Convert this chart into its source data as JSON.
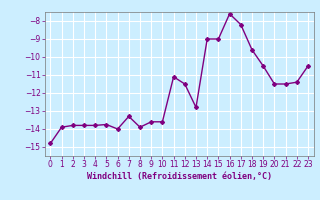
{
  "x": [
    0,
    1,
    2,
    3,
    4,
    5,
    6,
    7,
    8,
    9,
    10,
    11,
    12,
    13,
    14,
    15,
    16,
    17,
    18,
    19,
    20,
    21,
    22,
    23
  ],
  "y": [
    -14.8,
    -13.9,
    -13.8,
    -13.8,
    -13.8,
    -13.75,
    -14.0,
    -13.3,
    -13.9,
    -13.6,
    -13.6,
    -11.1,
    -11.5,
    -12.8,
    -9.0,
    -9.0,
    -7.6,
    -8.2,
    -9.6,
    -10.5,
    -11.5,
    -11.5,
    -11.4,
    -10.5
  ],
  "line_color": "#800080",
  "marker": "D",
  "marker_size": 2,
  "bg_color": "#cceeff",
  "grid_color": "#ffffff",
  "xlabel": "Windchill (Refroidissement éolien,°C)",
  "ylim": [
    -15.5,
    -7.5
  ],
  "xlim": [
    -0.5,
    23.5
  ],
  "yticks": [
    -15,
    -14,
    -13,
    -12,
    -11,
    -10,
    -9,
    -8
  ],
  "xticks": [
    0,
    1,
    2,
    3,
    4,
    5,
    6,
    7,
    8,
    9,
    10,
    11,
    12,
    13,
    14,
    15,
    16,
    17,
    18,
    19,
    20,
    21,
    22,
    23
  ],
  "tick_color": "#800080",
  "label_color": "#800080",
  "xlabel_fontsize": 6,
  "tick_fontsize": 5.5,
  "line_width": 1.0
}
